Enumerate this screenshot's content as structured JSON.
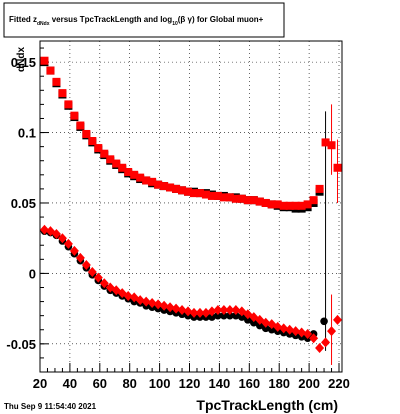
{
  "title": {
    "prefix": "Fitted  z",
    "sub1": "dNdx",
    "middle": "  versus TpcTrackLength and log",
    "sub2": "10",
    "tail": "(β  γ) for Global muon+"
  },
  "timestamp": "Thu Sep  9 11:54:40 2021",
  "chart_data": {
    "type": "scatter",
    "title": "Fitted  z_dNdx  versus TpcTrackLength and log_10(β γ) for Global muon+",
    "xlabel": "TpcTrackLength (cm)",
    "ylabel": "dNdx",
    "xlim": [
      20,
      222
    ],
    "ylim": [
      -0.07,
      0.165
    ],
    "grid": true,
    "x_ticks": [
      20,
      40,
      60,
      80,
      100,
      120,
      140,
      160,
      180,
      200,
      220
    ],
    "y_ticks": [
      -0.05,
      0,
      0.05,
      0.1,
      0.15
    ],
    "y_tick_labels": [
      "-0.05",
      "0",
      "0.05",
      "0.1",
      "0.15"
    ],
    "colors": {
      "black_series": "#000000",
      "red_series": "#ff0000"
    },
    "series": [
      {
        "color": "black",
        "marker": "square",
        "points": [
          [
            23,
            0.15
          ],
          [
            27,
            0.144
          ],
          [
            31,
            0.135
          ],
          [
            35,
            0.127
          ],
          [
            39,
            0.119
          ],
          [
            43,
            0.111
          ],
          [
            47,
            0.104
          ],
          [
            51,
            0.098
          ],
          [
            55,
            0.093
          ],
          [
            59,
            0.088
          ],
          [
            63,
            0.084
          ],
          [
            67,
            0.08
          ],
          [
            71,
            0.077
          ],
          [
            75,
            0.074
          ],
          [
            79,
            0.071
          ],
          [
            83,
            0.069
          ],
          [
            87,
            0.067
          ],
          [
            91,
            0.066
          ],
          [
            95,
            0.064
          ],
          [
            99,
            0.063
          ],
          [
            103,
            0.062
          ],
          [
            107,
            0.061
          ],
          [
            111,
            0.06
          ],
          [
            115,
            0.059
          ],
          [
            119,
            0.058
          ],
          [
            123,
            0.058
          ],
          [
            127,
            0.057
          ],
          [
            131,
            0.057
          ],
          [
            135,
            0.056
          ],
          [
            139,
            0.055
          ],
          [
            143,
            0.055
          ],
          [
            147,
            0.054
          ],
          [
            151,
            0.054
          ],
          [
            155,
            0.053
          ],
          [
            159,
            0.052
          ],
          [
            163,
            0.052
          ],
          [
            167,
            0.051
          ],
          [
            171,
            0.05
          ],
          [
            175,
            0.049
          ],
          [
            179,
            0.048
          ],
          [
            183,
            0.047
          ],
          [
            187,
            0.047
          ],
          [
            191,
            0.046
          ],
          [
            195,
            0.046
          ],
          [
            199,
            0.047
          ],
          [
            203,
            0.05
          ],
          [
            207,
            0.058
          ]
        ]
      },
      {
        "color": "black",
        "marker": "circle",
        "points": [
          [
            23,
            0.03
          ],
          [
            27,
            0.029
          ],
          [
            31,
            0.027
          ],
          [
            35,
            0.023
          ],
          [
            39,
            0.019
          ],
          [
            43,
            0.014
          ],
          [
            47,
            0.009
          ],
          [
            51,
            0.004
          ],
          [
            55,
            -0.001
          ],
          [
            59,
            -0.005
          ],
          [
            63,
            -0.009
          ],
          [
            67,
            -0.012
          ],
          [
            71,
            -0.014
          ],
          [
            75,
            -0.016
          ],
          [
            79,
            -0.018
          ],
          [
            83,
            -0.02
          ],
          [
            87,
            -0.021
          ],
          [
            91,
            -0.023
          ],
          [
            95,
            -0.024
          ],
          [
            99,
            -0.025
          ],
          [
            103,
            -0.026
          ],
          [
            107,
            -0.027
          ],
          [
            111,
            -0.028
          ],
          [
            115,
            -0.029
          ],
          [
            119,
            -0.03
          ],
          [
            123,
            -0.031
          ],
          [
            127,
            -0.031
          ],
          [
            131,
            -0.031
          ],
          [
            135,
            -0.031
          ],
          [
            139,
            -0.03
          ],
          [
            143,
            -0.03
          ],
          [
            147,
            -0.03
          ],
          [
            151,
            -0.03
          ],
          [
            155,
            -0.031
          ],
          [
            159,
            -0.033
          ],
          [
            163,
            -0.035
          ],
          [
            167,
            -0.037
          ],
          [
            171,
            -0.039
          ],
          [
            175,
            -0.04
          ],
          [
            179,
            -0.041
          ],
          [
            183,
            -0.042
          ],
          [
            187,
            -0.043
          ],
          [
            191,
            -0.044
          ],
          [
            195,
            -0.045
          ],
          [
            199,
            -0.046
          ],
          [
            203,
            -0.043
          ],
          [
            210,
            -0.034
          ]
        ]
      },
      {
        "color": "red",
        "marker": "square",
        "points": [
          [
            23,
            0.151
          ],
          [
            27,
            0.144
          ],
          [
            31,
            0.136
          ],
          [
            35,
            0.128
          ],
          [
            39,
            0.12
          ],
          [
            43,
            0.112
          ],
          [
            47,
            0.105
          ],
          [
            51,
            0.099
          ],
          [
            55,
            0.094
          ],
          [
            59,
            0.089
          ],
          [
            63,
            0.085
          ],
          [
            67,
            0.081
          ],
          [
            71,
            0.078
          ],
          [
            75,
            0.075
          ],
          [
            79,
            0.072
          ],
          [
            83,
            0.07
          ],
          [
            87,
            0.068
          ],
          [
            91,
            0.066
          ],
          [
            95,
            0.065
          ],
          [
            99,
            0.063
          ],
          [
            103,
            0.062
          ],
          [
            107,
            0.061
          ],
          [
            111,
            0.06
          ],
          [
            115,
            0.059
          ],
          [
            119,
            0.058
          ],
          [
            123,
            0.057
          ],
          [
            127,
            0.057
          ],
          [
            131,
            0.056
          ],
          [
            135,
            0.055
          ],
          [
            139,
            0.055
          ],
          [
            143,
            0.054
          ],
          [
            147,
            0.054
          ],
          [
            151,
            0.053
          ],
          [
            155,
            0.053
          ],
          [
            159,
            0.052
          ],
          [
            163,
            0.052
          ],
          [
            167,
            0.051
          ],
          [
            171,
            0.05
          ],
          [
            175,
            0.049
          ],
          [
            179,
            0.049
          ],
          [
            183,
            0.048
          ],
          [
            187,
            0.048
          ],
          [
            191,
            0.048
          ],
          [
            195,
            0.048
          ],
          [
            199,
            0.049
          ],
          [
            203,
            0.052
          ],
          [
            207,
            0.06
          ],
          [
            211,
            0.093
          ],
          [
            215,
            0.091
          ],
          [
            219,
            0.075
          ]
        ]
      },
      {
        "color": "red",
        "marker": "diamond",
        "points": [
          [
            23,
            0.031
          ],
          [
            27,
            0.03
          ],
          [
            31,
            0.028
          ],
          [
            35,
            0.025
          ],
          [
            39,
            0.021
          ],
          [
            43,
            0.016
          ],
          [
            47,
            0.011
          ],
          [
            51,
            0.006
          ],
          [
            55,
            0.001
          ],
          [
            59,
            -0.003
          ],
          [
            63,
            -0.007
          ],
          [
            67,
            -0.01
          ],
          [
            71,
            -0.012
          ],
          [
            75,
            -0.014
          ],
          [
            79,
            -0.016
          ],
          [
            83,
            -0.017
          ],
          [
            87,
            -0.019
          ],
          [
            91,
            -0.02
          ],
          [
            95,
            -0.021
          ],
          [
            99,
            -0.022
          ],
          [
            103,
            -0.023
          ],
          [
            107,
            -0.024
          ],
          [
            111,
            -0.025
          ],
          [
            115,
            -0.026
          ],
          [
            119,
            -0.027
          ],
          [
            123,
            -0.028
          ],
          [
            127,
            -0.028
          ],
          [
            131,
            -0.028
          ],
          [
            135,
            -0.027
          ],
          [
            139,
            -0.026
          ],
          [
            143,
            -0.026
          ],
          [
            147,
            -0.026
          ],
          [
            151,
            -0.026
          ],
          [
            155,
            -0.027
          ],
          [
            159,
            -0.029
          ],
          [
            163,
            -0.031
          ],
          [
            167,
            -0.033
          ],
          [
            171,
            -0.035
          ],
          [
            175,
            -0.036
          ],
          [
            179,
            -0.038
          ],
          [
            183,
            -0.039
          ],
          [
            187,
            -0.04
          ],
          [
            191,
            -0.041
          ],
          [
            195,
            -0.042
          ],
          [
            199,
            -0.043
          ],
          [
            203,
            -0.046
          ],
          [
            207,
            -0.053
          ],
          [
            211,
            -0.049
          ],
          [
            215,
            -0.041
          ],
          [
            219,
            -0.033
          ]
        ]
      }
    ],
    "error_bars": [
      {
        "x": 211,
        "y_low": -0.055,
        "y_high": 0.115,
        "color": "black"
      },
      {
        "x": 215,
        "y_low": 0.07,
        "y_high": 0.12,
        "color": "red"
      },
      {
        "x": 215,
        "y_low": -0.065,
        "y_high": -0.015,
        "color": "red"
      },
      {
        "x": 219,
        "y_low": 0.05,
        "y_high": 0.095,
        "color": "red"
      }
    ]
  }
}
